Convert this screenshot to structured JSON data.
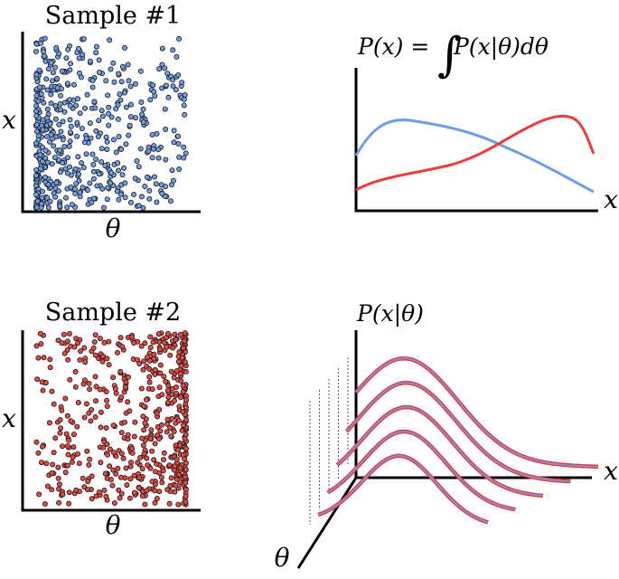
{
  "panel_sample1": {
    "title": "Sample #1",
    "x_axis_label": "θ",
    "y_axis_label": "x",
    "point_color": "#6f9ee6"
  },
  "panel_sample2": {
    "title": "Sample #2",
    "x_axis_label": "θ",
    "y_axis_label": "x",
    "point_color": "#e34a44"
  },
  "panel_marginal": {
    "formula_left": "P(x) = ",
    "integral_sign": "∫",
    "formula_right": "P(x|θ)dθ",
    "x_axis_label": "x",
    "blue_curve_color": "#6f9ee6",
    "red_curve_color": "#ee3b3b"
  },
  "panel_conditional": {
    "title": "P(x|θ)",
    "x_axis_label": "x",
    "theta_axis_label": "θ",
    "curve_outer_color": "#ee3b3b",
    "curve_inner_color": "#6f9ee6"
  }
}
